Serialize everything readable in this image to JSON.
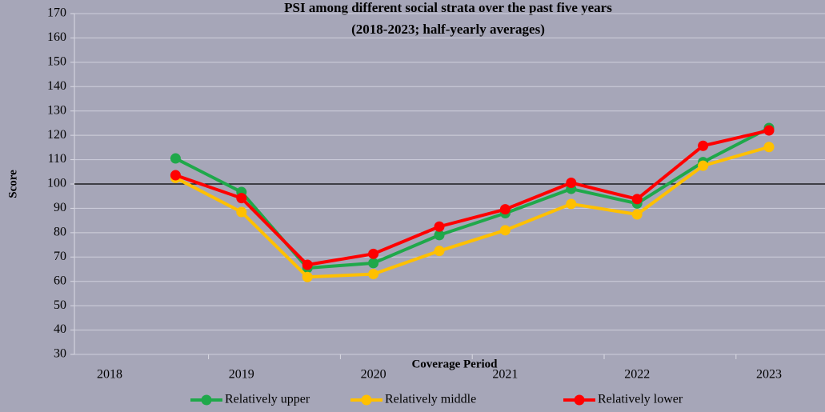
{
  "chart_data": {
    "type": "line",
    "title": "PSI among different social strata over the past five years",
    "subtitle": "(2018-2023; half-yearly averages)",
    "x_label": "Coverage Period",
    "y_label": "Score",
    "categories": [
      "2018",
      null,
      "2019",
      null,
      "2020",
      null,
      "2021",
      null,
      "2022",
      null,
      "2023"
    ],
    "series": [
      {
        "name": "Relatively upper",
        "color": "#1fa84a",
        "values": [
          null,
          110.5,
          96.7,
          65.5,
          67.5,
          79,
          88,
          98,
          92,
          109,
          123
        ]
      },
      {
        "name": "Relatively middle",
        "color": "#ffc000",
        "values": [
          null,
          102.5,
          88.5,
          61.8,
          63,
          72.5,
          81,
          91.8,
          87.5,
          107.5,
          115.2
        ]
      },
      {
        "name": "Relatively lower",
        "color": "#ff0000",
        "values": [
          null,
          103.6,
          94.2,
          66.8,
          71.3,
          82.5,
          89.6,
          100.5,
          93.8,
          115.7,
          122
        ]
      }
    ],
    "ylim": [
      30,
      170
    ],
    "yticks": [
      30,
      40,
      50,
      60,
      70,
      80,
      90,
      100,
      110,
      120,
      130,
      140,
      150,
      160,
      170
    ],
    "reference_line": 100,
    "grid": true,
    "legend": "bottom"
  }
}
